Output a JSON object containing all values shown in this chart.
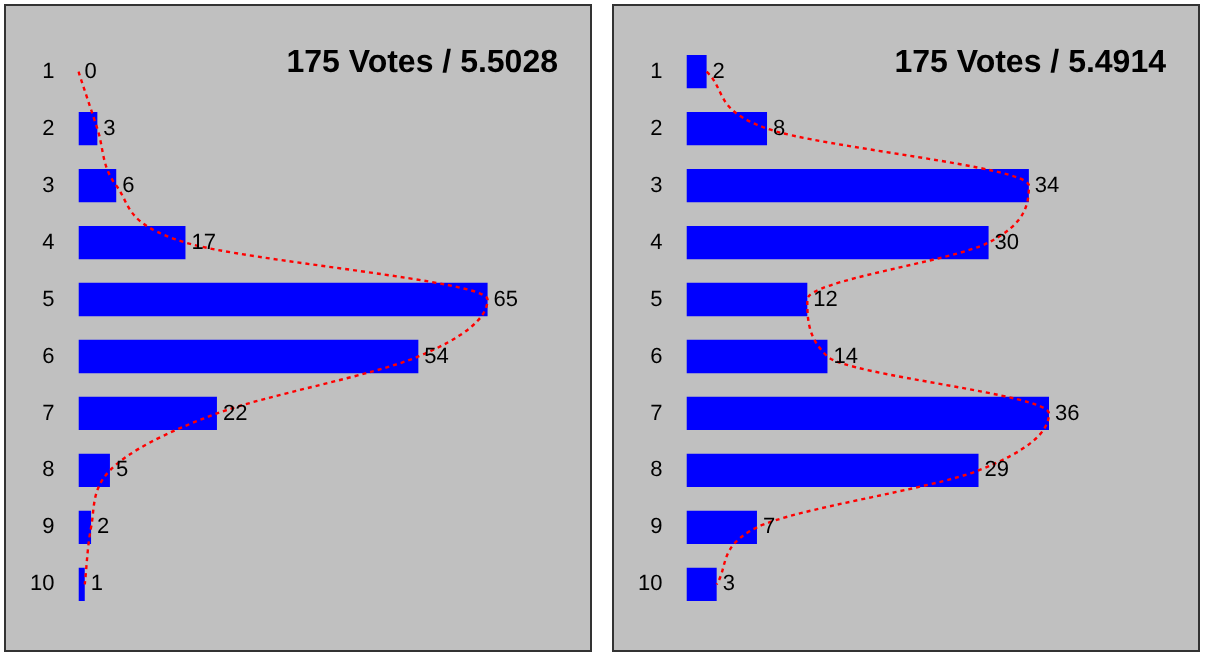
{
  "chart_data": [
    {
      "type": "bar",
      "orientation": "horizontal",
      "title": "175 Votes / 5.5028",
      "categories": [
        "1",
        "2",
        "3",
        "4",
        "5",
        "6",
        "7",
        "8",
        "9",
        "10"
      ],
      "series": [
        {
          "type": "bar",
          "color": "#0000ff",
          "values": [
            0,
            3,
            6,
            17,
            65,
            54,
            22,
            5,
            2,
            1
          ],
          "value_labels": [
            "0",
            "3",
            "6",
            "17",
            "65",
            "54",
            "22",
            "5",
            "2",
            "1"
          ]
        },
        {
          "type": "line",
          "color": "#ff0000",
          "line_style": "dotted",
          "values": [
            0,
            3,
            6,
            17,
            65,
            54,
            22,
            5,
            2,
            1
          ]
        }
      ],
      "tick_labels": "y",
      "legend": false,
      "grid": false
    },
    {
      "type": "bar",
      "orientation": "horizontal",
      "title": "175 Votes / 5.4914",
      "categories": [
        "1",
        "2",
        "3",
        "4",
        "5",
        "6",
        "7",
        "8",
        "9",
        "10"
      ],
      "series": [
        {
          "type": "bar",
          "color": "#0000ff",
          "values": [
            2,
            8,
            34,
            30,
            12,
            14,
            36,
            29,
            7,
            3
          ],
          "value_labels": [
            "2",
            "8",
            "34",
            "30",
            "12",
            "14",
            "36",
            "29",
            "7",
            "3"
          ]
        },
        {
          "type": "line",
          "color": "#ff0000",
          "line_style": "dotted",
          "values": [
            2,
            8,
            34,
            30,
            12,
            14,
            36,
            29,
            7,
            3
          ]
        }
      ],
      "tick_labels": "y",
      "legend": false,
      "grid": false
    }
  ]
}
